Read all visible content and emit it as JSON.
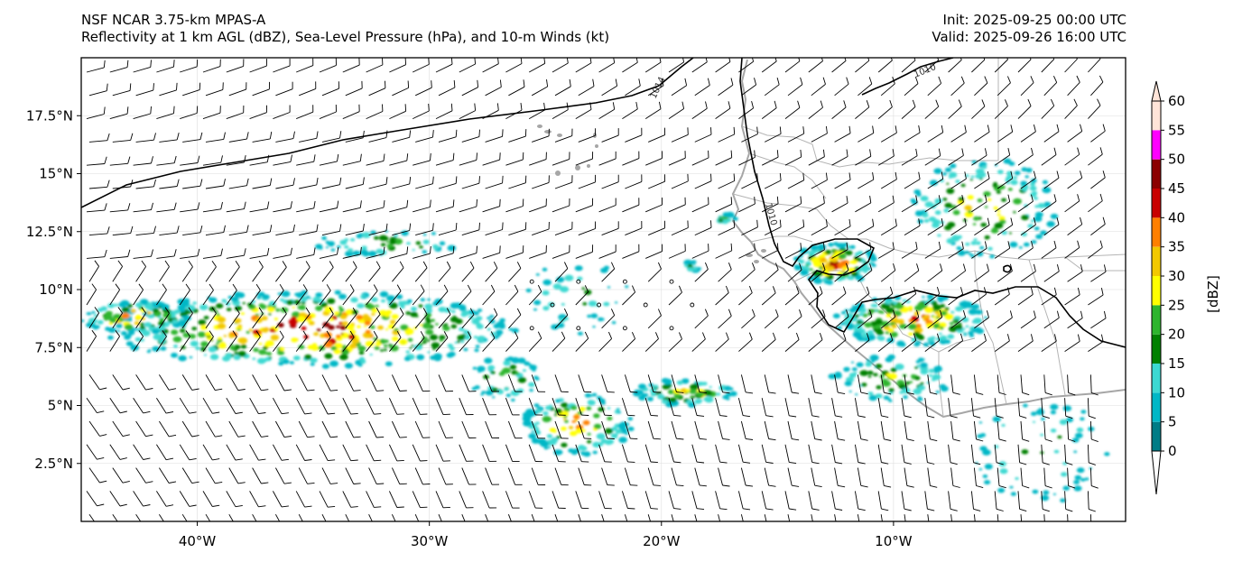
{
  "header": {
    "model_title": "NSF NCAR 3.75-km MPAS-A",
    "field_title": "Reflectivity at 1 km AGL (dBZ), Sea-Level Pressure (hPa), and 10-m Winds (kt)",
    "init_time": "Init: 2025-09-25 00:00 UTC",
    "valid_time": "Valid: 2025-09-26 16:00 UTC"
  },
  "map": {
    "lon_range": [
      -45,
      0
    ],
    "lat_range": [
      0,
      20
    ],
    "lon_ticks": [
      {
        "value": -40,
        "label": "40°W"
      },
      {
        "value": -30,
        "label": "30°W"
      },
      {
        "value": -20,
        "label": "20°W"
      },
      {
        "value": -10,
        "label": "10°W"
      }
    ],
    "lat_ticks": [
      {
        "value": 2.5,
        "label": "2.5°N"
      },
      {
        "value": 5,
        "label": "5°N"
      },
      {
        "value": 7.5,
        "label": "7.5°N"
      },
      {
        "value": 10,
        "label": "10°N"
      },
      {
        "value": 12.5,
        "label": "12.5°N"
      },
      {
        "value": 15,
        "label": "15°N"
      },
      {
        "value": 17.5,
        "label": "17.5°N"
      }
    ],
    "isobar_labels": [
      "1014",
      "1010",
      "1010"
    ],
    "colors": {
      "coastline": "#a6a6a6",
      "border": "#b4b4b4",
      "isobar": "#000000"
    }
  },
  "colorbar": {
    "label": "[dBZ]",
    "ticks": [
      "0",
      "5",
      "10",
      "15",
      "20",
      "25",
      "30",
      "35",
      "40",
      "45",
      "50",
      "55",
      "60"
    ],
    "colors": [
      "#ffffff",
      "#007c86",
      "#00b7c6",
      "#3cd9d2",
      "#008000",
      "#2db52d",
      "#ffff00",
      "#f2c800",
      "#ff7f00",
      "#c80000",
      "#8b0000",
      "#ff00ff",
      "#ffe4d8"
    ]
  },
  "reflectivity_areas": [
    {
      "name": "mid-atlantic-cluster",
      "lon": -34.5,
      "lat": 8.3,
      "intensity": 45
    },
    {
      "name": "far-west-band",
      "lon": -41.5,
      "lat": 8.2,
      "intensity": 40
    },
    {
      "name": "guinea-cluster",
      "lon": -12.5,
      "lat": 10.8,
      "intensity": 45
    },
    {
      "name": "sierra-leone-band",
      "lon": -9.5,
      "lat": 8.8,
      "intensity": 40
    },
    {
      "name": "southern-line",
      "lon": -23.5,
      "lat": 4.0,
      "intensity": 35
    }
  ]
}
